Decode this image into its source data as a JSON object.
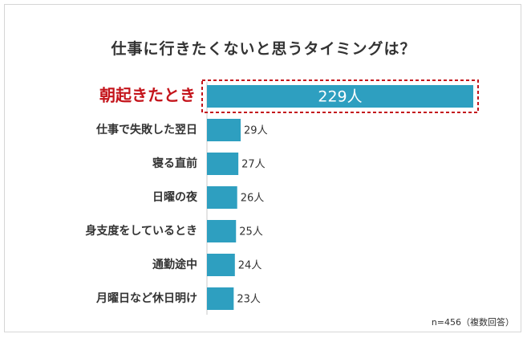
{
  "chart_data": {
    "type": "bar",
    "orientation": "horizontal",
    "title": "仕事に行きたくないと思うタイミングは？",
    "categories": [
      "朝起きたとき",
      "仕事で失敗した翌日",
      "寝る直前",
      "日曜の夜",
      "身支度をしているとき",
      "通勤途中",
      "月曜日など休日明け"
    ],
    "values": [
      229,
      29,
      27,
      26,
      25,
      24,
      23
    ],
    "value_labels": [
      "229人",
      "29人",
      "27人",
      "26人",
      "25人",
      "24人",
      "23人"
    ],
    "highlighted_category": "朝起きたとき",
    "note": "n=456（複数回答）",
    "xlim": [
      0,
      229
    ],
    "grid": false,
    "legend": "none"
  },
  "colors": {
    "bar": "#2e9fc0",
    "highlight_text": "#c4141b",
    "highlight_border": "#c4141b",
    "label": "#333333"
  }
}
